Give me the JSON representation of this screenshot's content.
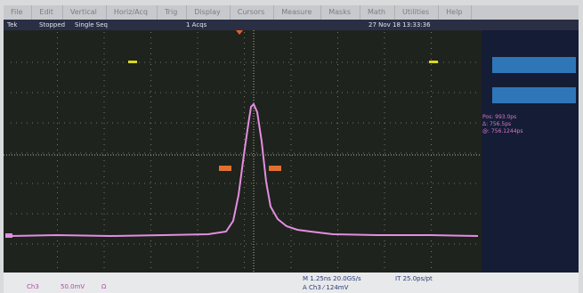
{
  "menu": [
    "File",
    "Edit",
    "Vertical",
    "Horiz/Acq",
    "Trig",
    "Display",
    "Cursors",
    "Measure",
    "Masks",
    "Math",
    "Utilities",
    "Help"
  ],
  "status": {
    "brand": "Tek",
    "state": "Stopped",
    "mode": "Single Seq",
    "acqs": "1 Acqs",
    "date": "27 Nov 18 13:33:36"
  },
  "readouts": [
    "Pos: 993.0ps",
    "Δ: 756.5ps",
    "@: 756.1244ps"
  ],
  "bottom": {
    "channel": "Ch3",
    "scale": "50.0mV",
    "ohm": "Ω",
    "timebase": "M 1.25ns 20.0GS/s",
    "resolution": "IT 25.0ps/pt",
    "trigger": "A Ch3 ⁄ 124mV"
  }
}
